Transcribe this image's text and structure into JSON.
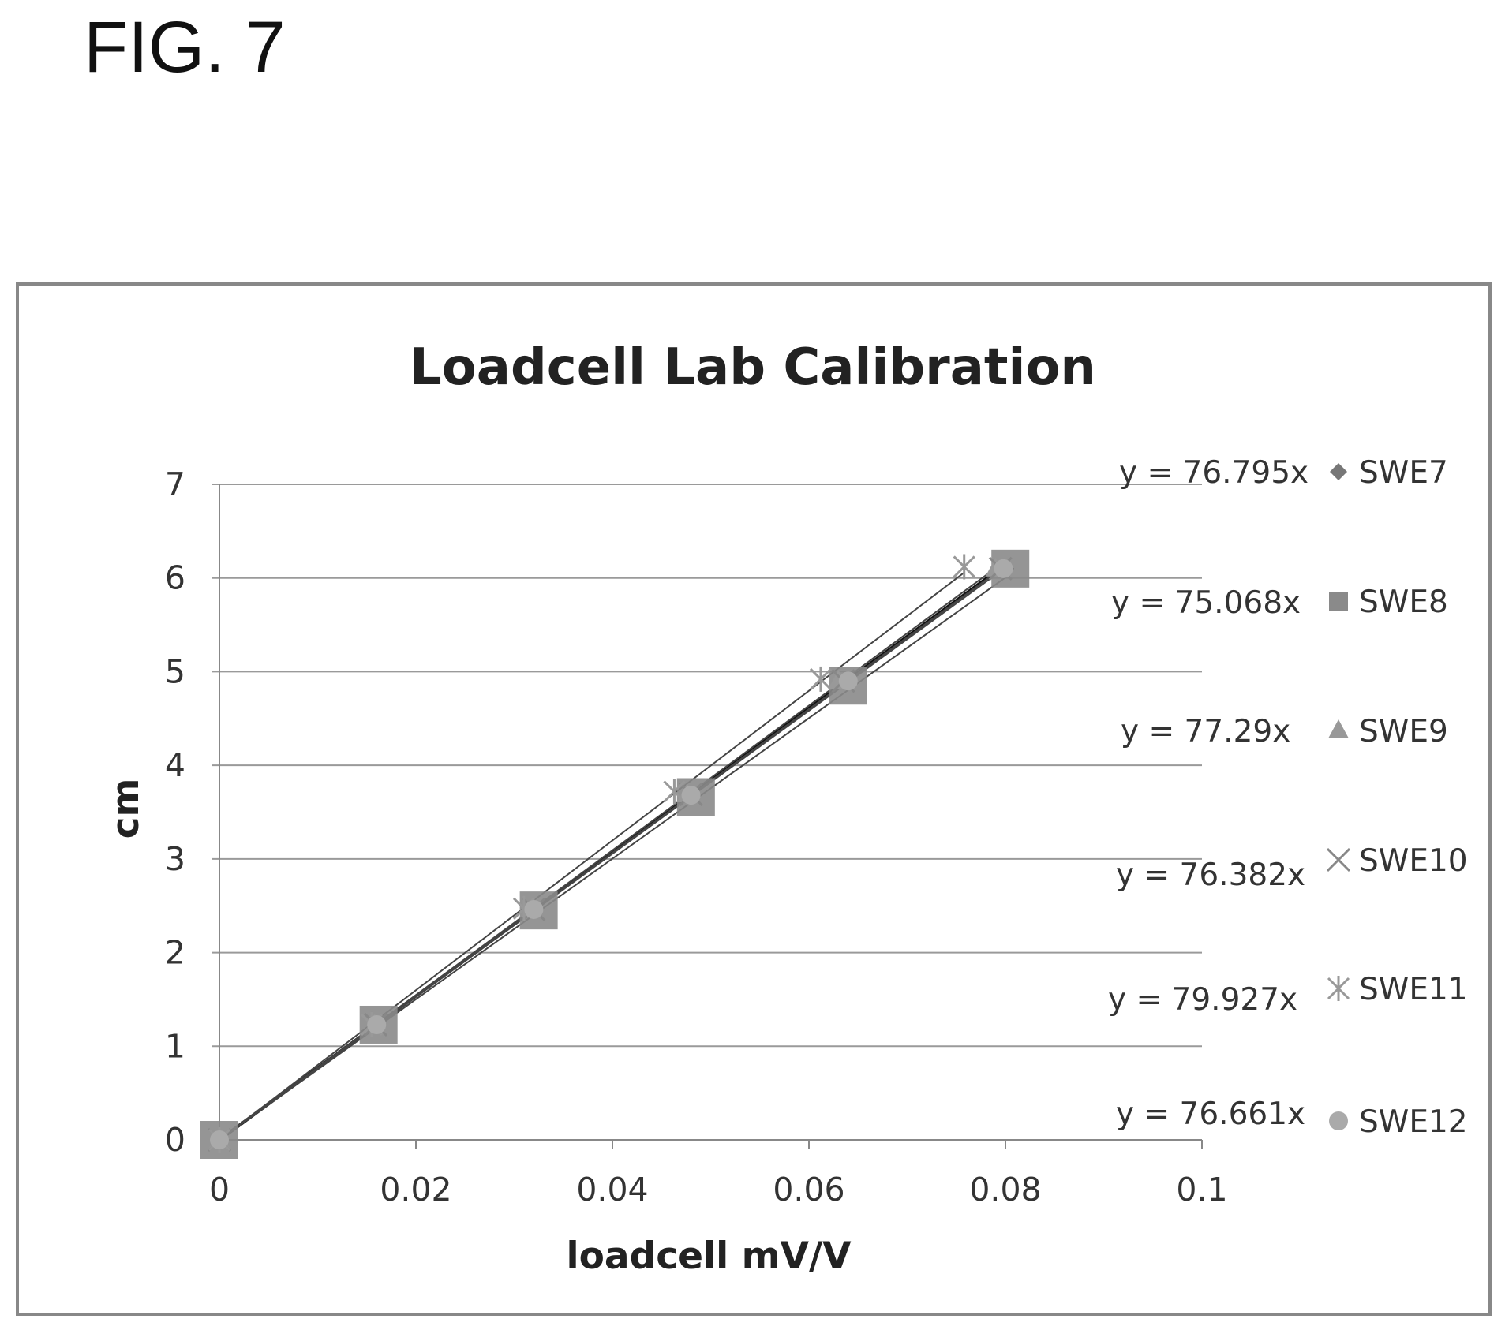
{
  "figure_label": "FIG. 7",
  "chart_data": {
    "type": "scatter",
    "title": "Loadcell Lab Calibration",
    "xlabel": "loadcell mV/V",
    "ylabel": "cm",
    "xlim": [
      0,
      0.1
    ],
    "ylim": [
      0,
      7
    ],
    "x_ticks": [
      "0",
      "0.02",
      "0.04",
      "0.06",
      "0.08",
      "0.1"
    ],
    "y_ticks": [
      "0",
      "1",
      "2",
      "3",
      "4",
      "5",
      "6",
      "7"
    ],
    "grid": "horizontal",
    "legend_position": "right",
    "series": [
      {
        "name": "SWE7",
        "marker": "diamond",
        "color": "#777777",
        "slope": 76.795,
        "equation": "y = 76.795x",
        "x": [
          0,
          0.016,
          0.032,
          0.048,
          0.064,
          0.08
        ],
        "y": [
          0,
          1.23,
          2.46,
          3.69,
          4.9,
          6.1
        ]
      },
      {
        "name": "SWE8",
        "marker": "square",
        "color": "#8a8a8a",
        "slope": 75.068,
        "equation": "y = 75.068x",
        "x": [
          0,
          0.0162,
          0.0325,
          0.0485,
          0.064,
          0.0805
        ],
        "y": [
          0,
          1.23,
          2.45,
          3.66,
          4.85,
          6.1
        ]
      },
      {
        "name": "SWE9",
        "marker": "triangle",
        "color": "#999999",
        "slope": 77.29,
        "equation": "y = 77.29x",
        "x": [
          0,
          0.0158,
          0.0318,
          0.0476,
          0.063,
          0.079
        ],
        "y": [
          0,
          1.23,
          2.46,
          3.69,
          4.9,
          6.1
        ]
      },
      {
        "name": "SWE10",
        "marker": "x",
        "color": "#888888",
        "slope": 76.382,
        "equation": "y = 76.382x",
        "x": [
          0,
          0.0159,
          0.032,
          0.048,
          0.0635,
          0.0795
        ],
        "y": [
          0,
          1.23,
          2.46,
          3.69,
          4.9,
          6.1
        ]
      },
      {
        "name": "SWE11",
        "marker": "asterisk",
        "color": "#999999",
        "slope": 79.927,
        "equation": "y = 79.927x",
        "x": [
          0,
          0.0155,
          0.031,
          0.0463,
          0.0612,
          0.0758
        ],
        "y": [
          0,
          1.23,
          2.47,
          3.72,
          4.92,
          6.12
        ]
      },
      {
        "name": "SWE12",
        "marker": "circle",
        "color": "#aaaaaa",
        "slope": 76.661,
        "equation": "y = 76.661x",
        "x": [
          0,
          0.016,
          0.032,
          0.048,
          0.064,
          0.0798
        ],
        "y": [
          0,
          1.23,
          2.46,
          3.68,
          4.9,
          6.1
        ]
      }
    ]
  }
}
